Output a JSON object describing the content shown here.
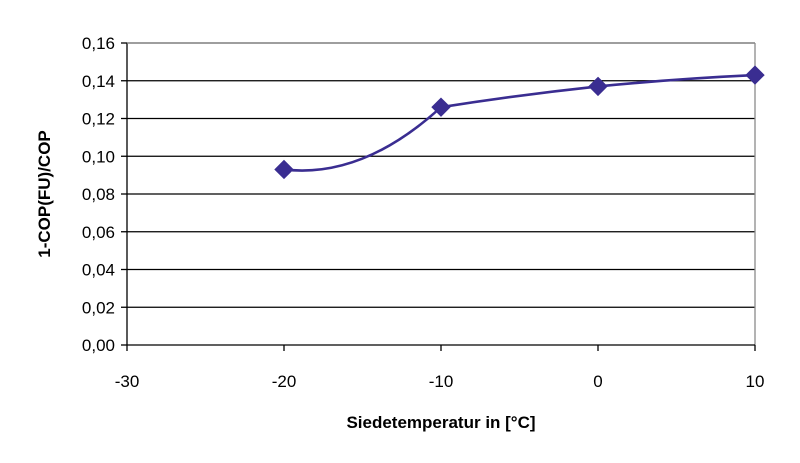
{
  "chart_data": {
    "type": "line",
    "title": "",
    "xlabel": "Siedetemperatur in [°C]",
    "ylabel": "1-COP(FU)/COP",
    "xlim": [
      -30,
      10
    ],
    "ylim": [
      0,
      0.16
    ],
    "x_ticks": [
      -30,
      -20,
      -10,
      0,
      10
    ],
    "x_tick_labels": [
      "-30",
      "-20",
      "-10",
      "0",
      "10"
    ],
    "y_ticks": [
      0,
      0.02,
      0.04,
      0.06,
      0.08,
      0.1,
      0.12,
      0.14,
      0.16
    ],
    "y_tick_labels": [
      "0,00",
      "0,02",
      "0,04",
      "0,06",
      "0,08",
      "0,10",
      "0,12",
      "0,14",
      "0,16"
    ],
    "grid": "horizontal",
    "legend": "none",
    "series": [
      {
        "x": [
          -20,
          -10,
          0,
          10
        ],
        "y": [
          0.093,
          0.126,
          0.137,
          0.143
        ],
        "color": "#3a2d91",
        "marker": "diamond"
      }
    ]
  }
}
